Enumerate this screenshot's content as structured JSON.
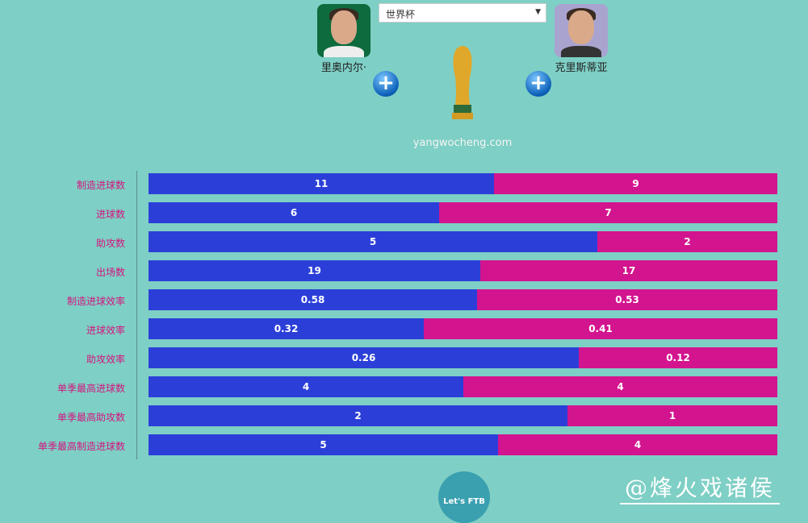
{
  "header": {
    "competition_select": "世界杯",
    "left_player": "里奥内尔·",
    "right_player": "克里斯蒂亚",
    "site": "yangwocheng.com",
    "add_icon": "plus-circle-icon",
    "trophy_icon": "world-cup-trophy-icon"
  },
  "chart_data": {
    "type": "bar",
    "orientation": "horizontal-stacked-comparison",
    "categories": [
      "制造进球数",
      "进球数",
      "助攻数",
      "出场数",
      "制造进球效率",
      "进球效率",
      "助攻效率",
      "单季最高进球数",
      "单季最高助攻数",
      "单季最高制造进球数"
    ],
    "series": [
      {
        "name": "里奥内尔·",
        "color": "#2b3fd8",
        "values": [
          "11",
          "6",
          "5",
          "19",
          "0.58",
          "0.32",
          "0.26",
          "4",
          "2",
          "5"
        ]
      },
      {
        "name": "克里斯蒂亚",
        "color": "#d3148f",
        "values": [
          "9",
          "7",
          "2",
          "17",
          "0.53",
          "0.41",
          "0.12",
          "4",
          "1",
          "4"
        ]
      }
    ]
  },
  "footer": {
    "logo": "Let's FTB",
    "watermark": "@烽火戏诸侯"
  }
}
